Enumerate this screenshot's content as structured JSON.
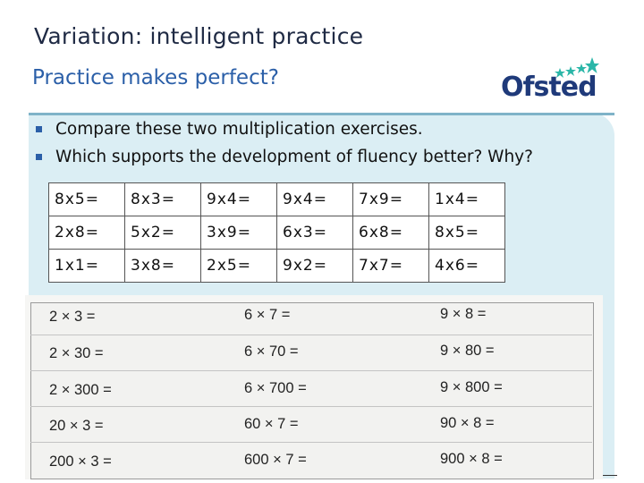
{
  "slide": {
    "title": "Variation: intelligent practice",
    "subtitle": "Practice makes perfect?"
  },
  "logo": {
    "text": "Ofsted",
    "star_color": "#2bb6a8"
  },
  "bullets": [
    "Compare these two multiplication exercises.",
    "Which supports the development of fluency better? Why?"
  ],
  "exercise_a": {
    "rows": [
      [
        "8x5=",
        "8x3=",
        "9x4=",
        "9x4=",
        "7x9=",
        "1x4="
      ],
      [
        "2x8=",
        "5x2=",
        "3x9=",
        "6x3=",
        "6x8=",
        "8x5="
      ],
      [
        "1x1=",
        "3x8=",
        "2x5=",
        "9x2=",
        "7x7=",
        "4x6="
      ]
    ]
  },
  "exercise_b": {
    "columns": [
      [
        "2 × 3 =",
        "2 × 30 =",
        "2 × 300 =",
        "20 × 3 =",
        "200 × 3 ="
      ],
      [
        "6 × 7 =",
        "6 × 70 =",
        "6 × 700 =",
        "60 × 7 =",
        "600 × 7 ="
      ],
      [
        "9 × 8 =",
        "9 × 80 =",
        "9 × 800 =",
        "90 × 8 =",
        "900 × 8 ="
      ]
    ]
  },
  "colors": {
    "title": "#1f2a44",
    "subtitle": "#2b5fa8",
    "panel": "#dbeef4",
    "logo_text": "#1f3a7a"
  }
}
